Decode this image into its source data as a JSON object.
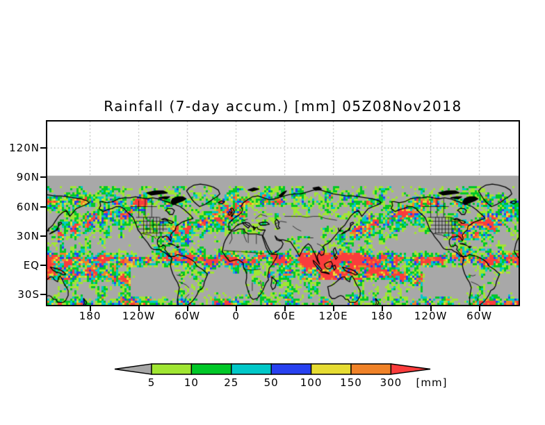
{
  "title": "Rainfall (7-day accum.) [mm] 05Z08Nov2018",
  "axes": {
    "y_tick_labels": [
      "120N",
      "90N",
      "60N",
      "30N",
      "EQ",
      "30S"
    ],
    "x_tick_labels": [
      "180",
      "120W",
      "60W",
      "0",
      "60E",
      "120E",
      "180",
      "120W",
      "60W"
    ]
  },
  "colorbar": {
    "tick_labels": [
      "5",
      "10",
      "25",
      "50",
      "100",
      "150",
      "300"
    ],
    "unit_label": "[mm]",
    "colors": [
      "#a6a6a6",
      "#a0e632",
      "#00c828",
      "#00c8c8",
      "#2841f0",
      "#e6dc32",
      "#f08228",
      "#fa3c3c"
    ]
  },
  "chart_data": {
    "type": "heatmap",
    "title": "Rainfall (7-day accum.) [mm] 05Z08Nov2018",
    "variable": "Rainfall (7-day accumulation)",
    "units": "mm",
    "valid_time": "05Z08Nov2018",
    "lat_axis": {
      "tick_labels": [
        "120N",
        "90N",
        "60N",
        "30N",
        "EQ",
        "30S"
      ],
      "tick_interval_deg": 30,
      "gridlines": "dotted"
    },
    "lon_axis": {
      "tick_labels": [
        "180",
        "120W",
        "60W",
        "0",
        "60E",
        "120E",
        "180",
        "120W",
        "60W"
      ],
      "tick_interval_deg": 60,
      "gridlines": "dotted",
      "note_visible": "longitude axis wraps; map repeats"
    },
    "colorbar": {
      "levels_mm": [
        5,
        10,
        25,
        50,
        100,
        150,
        300
      ],
      "segment_colors": [
        "#a6a6a6",
        "#a0e632",
        "#00c828",
        "#00c8c8",
        "#2841f0",
        "#e6dc32",
        "#f08228",
        "#fa3c3c"
      ],
      "below_min_color": "#a6a6a6",
      "above_max_color": "#fa3c3c",
      "unit": "[mm]"
    },
    "map_background_color": "#a8a8a8",
    "coastline_color": "#000000",
    "data_region": "90N to about 43S",
    "visible_pattern": "speckled rainfall field: heavy (blue/orange) bands along ITCZ, Maritime Continent, SPCZ, and N Pacific / N Atlantic storm tracks; dry gray zones in subtropical east oceans and Sahara"
  }
}
